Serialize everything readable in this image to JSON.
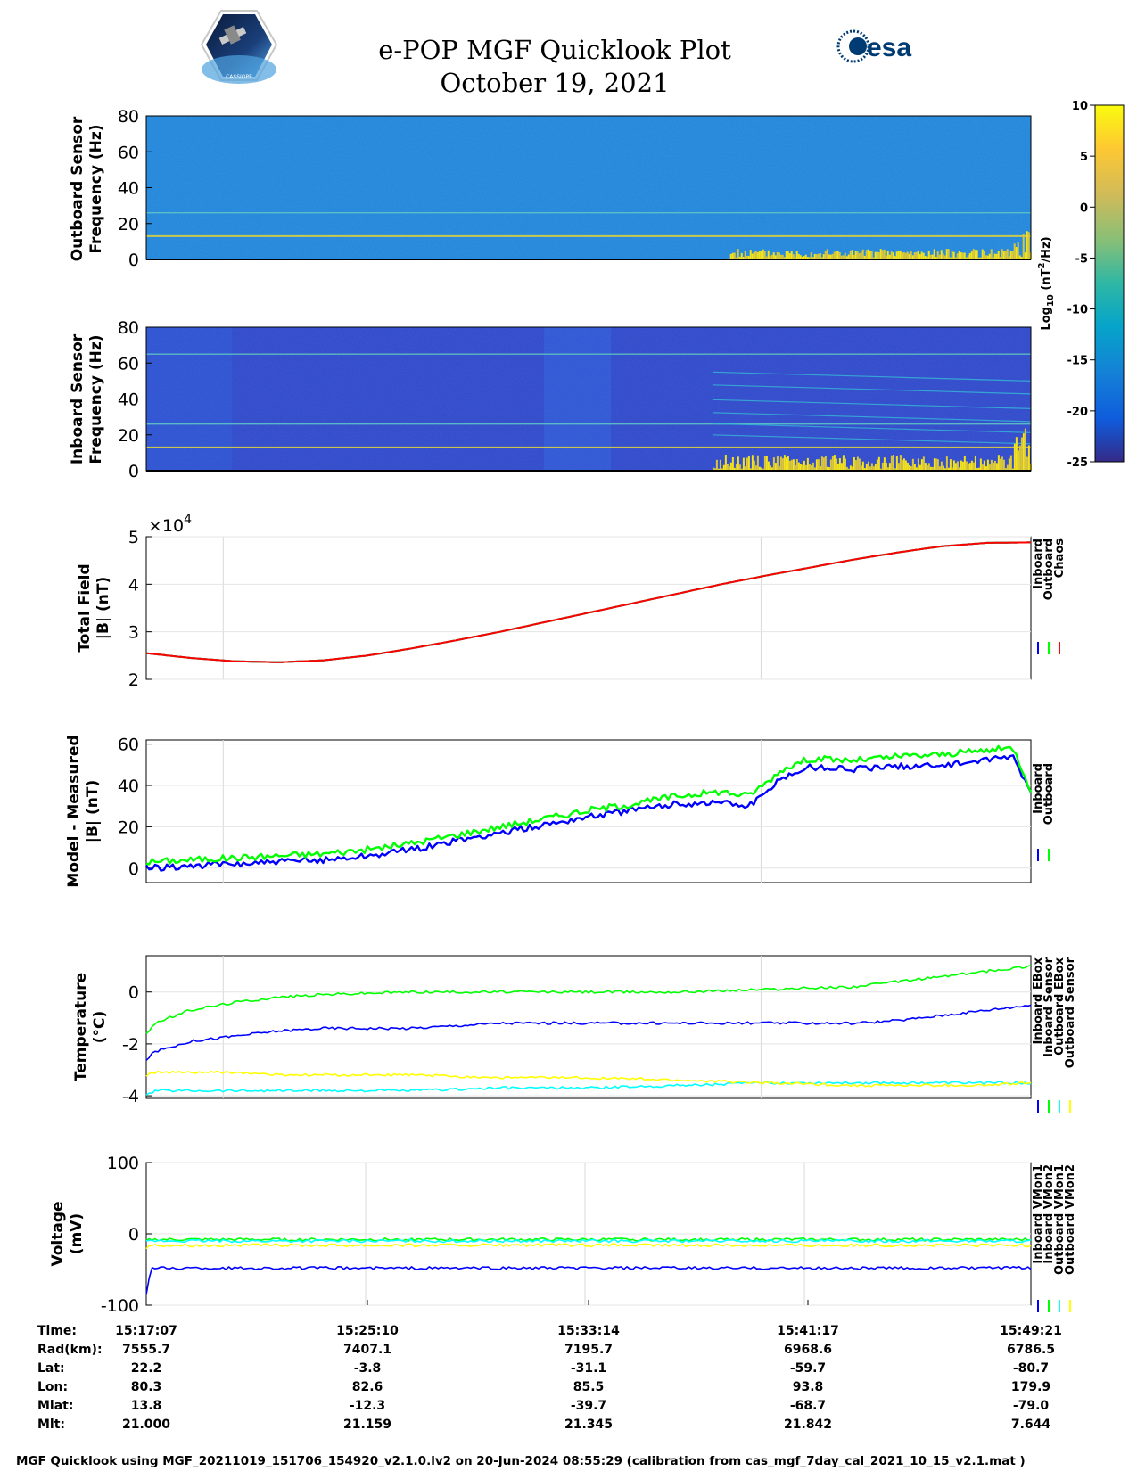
{
  "header": {
    "title_line1": "e-POP MGF Quicklook Plot",
    "title_line2": "October 19, 2021",
    "esa_logo_text": "esa",
    "cassiope_logo_text": "CASSIOPE"
  },
  "colorbar": {
    "ticks": [
      "10",
      "5",
      "0",
      "-5",
      "-10",
      "-15",
      "-20",
      "-25"
    ],
    "label_main": "Log",
    "label_sub": "10",
    "label_unit": " (nT",
    "label_sup": "2",
    "label_end": "/Hz)",
    "range": [
      -25,
      10
    ],
    "colormap": "parula"
  },
  "chart_data": [
    {
      "type": "heatmap",
      "panel": "outboard-spectrogram",
      "ylabel_line1": "Outboard Sensor",
      "ylabel_line2": "Frequency (Hz)",
      "ylim": [
        0,
        80
      ],
      "yticks": [
        "80",
        "60",
        "40",
        "20",
        "0"
      ],
      "background_level": -10,
      "persistent_lines_hz": [
        13,
        26
      ],
      "activity_start_fraction": 0.66
    },
    {
      "type": "heatmap",
      "panel": "inboard-spectrogram",
      "ylabel_line1": "Inboard Sensor",
      "ylabel_line2": "Frequency (Hz)",
      "ylim": [
        0,
        80
      ],
      "yticks": [
        "80",
        "60",
        "40",
        "20",
        "0"
      ],
      "background_level": -20,
      "persistent_lines_hz": [
        13,
        26,
        65
      ],
      "activity_start_fraction": 0.64
    },
    {
      "type": "line",
      "panel": "total-field",
      "ylabel_line1": "Total Field",
      "ylabel_line2": "|B| (nT)",
      "exponent_label": "×10",
      "exponent_power": "4",
      "ylim": [
        2,
        5
      ],
      "yticks": [
        "5",
        "4",
        "3",
        "2"
      ],
      "x_fraction": [
        0,
        0.05,
        0.1,
        0.15,
        0.2,
        0.25,
        0.3,
        0.35,
        0.4,
        0.45,
        0.5,
        0.55,
        0.6,
        0.65,
        0.7,
        0.75,
        0.8,
        0.85,
        0.9,
        0.95,
        1.0
      ],
      "series": [
        {
          "name": "Inboard",
          "color": "#0000ff",
          "values": [
            2.55,
            2.45,
            2.38,
            2.36,
            2.4,
            2.5,
            2.65,
            2.82,
            3.0,
            3.2,
            3.4,
            3.6,
            3.8,
            4.0,
            4.18,
            4.35,
            4.52,
            4.67,
            4.8,
            4.87,
            4.88
          ]
        },
        {
          "name": "Outboard",
          "color": "#00ff00",
          "values": [
            2.55,
            2.45,
            2.38,
            2.36,
            2.4,
            2.5,
            2.65,
            2.82,
            3.0,
            3.2,
            3.4,
            3.6,
            3.8,
            4.0,
            4.18,
            4.35,
            4.52,
            4.67,
            4.8,
            4.87,
            4.88
          ]
        },
        {
          "name": "Chaos",
          "color": "#ff0000",
          "values": [
            2.55,
            2.45,
            2.38,
            2.36,
            2.4,
            2.5,
            2.65,
            2.82,
            3.0,
            3.2,
            3.4,
            3.6,
            3.8,
            4.0,
            4.18,
            4.35,
            4.52,
            4.67,
            4.8,
            4.87,
            4.88
          ]
        }
      ]
    },
    {
      "type": "line",
      "panel": "model-minus-measured",
      "ylabel_line1": "Model - Measured",
      "ylabel_line2": "|B| (nT)",
      "ylim": [
        -7,
        62
      ],
      "yticks": [
        "60",
        "40",
        "20",
        "0"
      ],
      "ytick_values": [
        60,
        40,
        20,
        0
      ],
      "x_fraction": [
        0,
        0.05,
        0.1,
        0.15,
        0.2,
        0.25,
        0.3,
        0.35,
        0.4,
        0.45,
        0.5,
        0.55,
        0.6,
        0.65,
        0.68,
        0.7,
        0.72,
        0.75,
        0.8,
        0.85,
        0.9,
        0.95,
        0.98,
        1.0
      ],
      "series": [
        {
          "name": "Inboard",
          "color": "#0000ff",
          "values": [
            0,
            1,
            2,
            3,
            4,
            6,
            9,
            13,
            17,
            21,
            25,
            28,
            31,
            32,
            30,
            36,
            44,
            49,
            48,
            49,
            50,
            52,
            54,
            36
          ]
        },
        {
          "name": "Outboard",
          "color": "#00ff00",
          "values": [
            3,
            4,
            5,
            6,
            7,
            9,
            12,
            16,
            20,
            24,
            28,
            31,
            35,
            37,
            35,
            41,
            48,
            53,
            52,
            54,
            55,
            57,
            58,
            38
          ]
        }
      ]
    },
    {
      "type": "line",
      "panel": "temperature",
      "ylabel_line1": "Temperature",
      "ylabel_line2": "(°C)",
      "ylim": [
        -4.1,
        1.4
      ],
      "yticks": [
        "0",
        "-2",
        "-4"
      ],
      "ytick_values": [
        0,
        -2,
        -4
      ],
      "x_fraction": [
        0,
        0.01,
        0.05,
        0.1,
        0.15,
        0.2,
        0.3,
        0.4,
        0.5,
        0.6,
        0.7,
        0.8,
        0.85,
        0.9,
        0.95,
        1.0
      ],
      "series": [
        {
          "name": "Inboard EBox",
          "color": "#0000ff",
          "values": [
            -2.6,
            -2.3,
            -1.9,
            -1.7,
            -1.5,
            -1.4,
            -1.4,
            -1.2,
            -1.2,
            -1.2,
            -1.2,
            -1.2,
            -1.1,
            -0.9,
            -0.7,
            -0.5
          ]
        },
        {
          "name": "Inboard Sensor",
          "color": "#00ff00",
          "values": [
            -1.6,
            -1.2,
            -0.7,
            -0.4,
            -0.2,
            -0.1,
            0.0,
            0.0,
            0.0,
            0.0,
            0.1,
            0.2,
            0.4,
            0.6,
            0.8,
            1.0
          ]
        },
        {
          "name": "Outboard EBox",
          "color": "#00ffff",
          "values": [
            -4.0,
            -3.8,
            -3.8,
            -3.8,
            -3.8,
            -3.8,
            -3.8,
            -3.7,
            -3.7,
            -3.6,
            -3.5,
            -3.5,
            -3.5,
            -3.5,
            -3.5,
            -3.5
          ]
        },
        {
          "name": "Outboard Sensor",
          "color": "#ffff00",
          "values": [
            -3.2,
            -3.1,
            -3.1,
            -3.1,
            -3.2,
            -3.2,
            -3.2,
            -3.3,
            -3.3,
            -3.4,
            -3.5,
            -3.6,
            -3.6,
            -3.6,
            -3.6,
            -3.5
          ]
        }
      ]
    },
    {
      "type": "line",
      "panel": "voltage",
      "ylabel_line1": "Voltage",
      "ylabel_line2": "(mV)",
      "ylim": [
        -100,
        100
      ],
      "yticks": [
        "100",
        "0",
        "-100"
      ],
      "ytick_values": [
        100,
        0,
        -100
      ],
      "x_fraction": [
        0,
        0.005,
        0.02,
        0.1,
        0.2,
        0.3,
        0.4,
        0.5,
        0.6,
        0.7,
        0.8,
        0.9,
        1.0
      ],
      "series": [
        {
          "name": "Inboard VMon1",
          "color": "#0000ff",
          "values": [
            -85,
            -48,
            -48,
            -48,
            -48,
            -48,
            -48,
            -48,
            -48,
            -48,
            -48,
            -48,
            -48
          ]
        },
        {
          "name": "Inboard VMon2",
          "color": "#00ff00",
          "values": [
            -10,
            -8,
            -8,
            -8,
            -8,
            -8,
            -8,
            -8,
            -8,
            -8,
            -8,
            -8,
            -8
          ]
        },
        {
          "name": "Outboard VMon1",
          "color": "#00ffff",
          "values": [
            -12,
            -10,
            -10,
            -10,
            -10,
            -10,
            -10,
            -10,
            -10,
            -10,
            -10,
            -10,
            -10
          ]
        },
        {
          "name": "Outboard VMon2",
          "color": "#ffff00",
          "values": [
            -20,
            -16,
            -16,
            -16,
            -16,
            -16,
            -16,
            -16,
            -16,
            -16,
            -16,
            -16,
            -16
          ]
        }
      ]
    }
  ],
  "orbit_table": {
    "row_labels": [
      "Time:",
      "Rad(km):",
      "Lat:",
      "Lon:",
      "Mlat:",
      "Mlt:"
    ],
    "columns": [
      [
        "15:17:07",
        "7555.7",
        "22.2",
        "80.3",
        "13.8",
        "21.000"
      ],
      [
        "15:25:10",
        "7407.1",
        "-3.8",
        "82.6",
        "-12.3",
        "21.159"
      ],
      [
        "15:33:14",
        "7195.7",
        "-31.1",
        "85.5",
        "-39.7",
        "21.345"
      ],
      [
        "15:41:17",
        "6968.6",
        "-59.7",
        "93.8",
        "-68.7",
        "21.842"
      ],
      [
        "15:49:21",
        "6786.5",
        "-80.7",
        "179.9",
        "-79.0",
        "7.644"
      ]
    ]
  },
  "footer": {
    "text": "MGF Quicklook using MGF_20211019_151706_154920_v2.1.0.lv2 on 20-Jun-2024 08:55:29 (calibration from cas_mgf_7day_cal_2021_10_15_v2.1.mat )"
  }
}
